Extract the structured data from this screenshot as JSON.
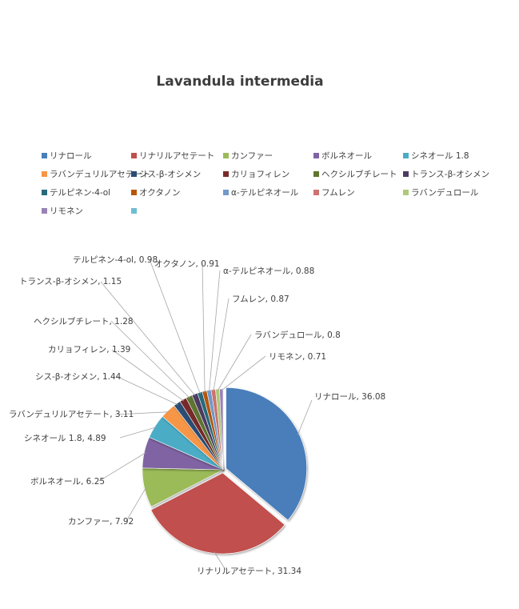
{
  "chart_data": {
    "type": "pie",
    "title": "Lavandula  intermedia",
    "legend_position": "top",
    "categories": [
      "リナロール",
      "リナリルアセテート",
      "カンファー",
      "ボルネオール",
      "シネオール 1.8",
      "ラバンデュリルアセテート",
      "シス-β-オシメン",
      "カリョフィレン",
      "ヘクシルブチレート",
      "トランス-β-オシメン",
      "テルピネン-4-ol",
      "オクタノン",
      "α-テルピネオール",
      "フムレン",
      "ラバンデュロール",
      "リモネン"
    ],
    "values": [
      36.08,
      31.34,
      7.92,
      6.25,
      4.89,
      3.11,
      1.44,
      1.39,
      1.28,
      1.15,
      0.98,
      0.91,
      0.88,
      0.87,
      0.8,
      0.71
    ],
    "data_labels": [
      "リナロール, 36.08",
      "リナリルアセテート, 31.34",
      "カンファー, 7.92",
      "ボルネオール, 6.25",
      "シネオール 1.8, 4.89",
      "ラバンデュリルアセテート, 3.11",
      "シス-β-オシメン, 1.44",
      "カリョフィレン, 1.39",
      "ヘクシルブチレート, 1.28",
      "トランス-β-オシメン, 1.15",
      "テルピネン-4-ol, 0.98",
      "オクタノン, 0.91",
      "α-テルピネオール, 0.88",
      "フムレン, 0.87",
      "ラバンデュロール, 0.8",
      "リモネン, 0.71"
    ],
    "colors": [
      "#4a7ebb",
      "#c0504d",
      "#9bbb59",
      "#8064a2",
      "#4bacc6",
      "#f79646",
      "#2c4d75",
      "#772c2a",
      "#5f7530",
      "#4d3b62",
      "#276a7c",
      "#b65708",
      "#729aca",
      "#cd7371",
      "#afc97a",
      "#9983b5",
      "#6fbdd1"
    ],
    "legend_extra_swatch_color": "#6fbdd1"
  }
}
